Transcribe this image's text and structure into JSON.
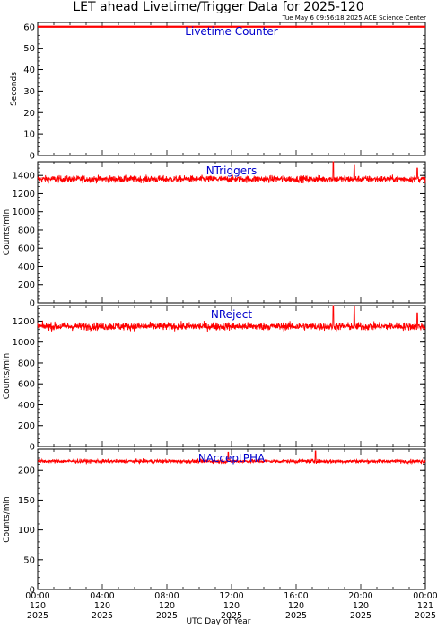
{
  "title": "LET ahead Livetime/Trigger Data for 2025-120",
  "subtitle": "Tue May  6 09:56:18 2025 ACE Science Center",
  "xlabel": "UTC Day of Year",
  "x_ticks": [
    {
      "time": "00:00",
      "doy": "120",
      "year": "2025"
    },
    {
      "time": "04:00",
      "doy": "120",
      "year": "2025"
    },
    {
      "time": "08:00",
      "doy": "120",
      "year": "2025"
    },
    {
      "time": "12:00",
      "doy": "120",
      "year": "2025"
    },
    {
      "time": "16:00",
      "doy": "120",
      "year": "2025"
    },
    {
      "time": "20:00",
      "doy": "120",
      "year": "2025"
    },
    {
      "time": "00:00",
      "doy": "121",
      "year": "2025"
    }
  ],
  "colors": {
    "series": "#ff0000",
    "label": "#0000cc",
    "axis": "#000000"
  },
  "chart_data": [
    {
      "type": "line",
      "label": "Livetime Counter",
      "ylabel": "Seconds",
      "ylim": [
        0,
        62
      ],
      "yticks": [
        0,
        10,
        20,
        30,
        40,
        50,
        60
      ],
      "xlim": [
        0,
        24
      ],
      "series": [
        {
          "values_mean": 60,
          "noise": 0,
          "spikes": []
        }
      ]
    },
    {
      "type": "line",
      "label": "NTriggers",
      "ylabel": "Counts/min",
      "ylim": [
        0,
        1550
      ],
      "yticks": [
        0,
        200,
        400,
        600,
        800,
        1000,
        1200,
        1400
      ],
      "xlim": [
        0,
        24
      ],
      "series": [
        {
          "values_mean": 1360,
          "noise": 60,
          "spikes": [
            [
              18.3,
              1550
            ],
            [
              19.6,
              1510
            ],
            [
              23.5,
              1480
            ]
          ]
        }
      ]
    },
    {
      "type": "line",
      "label": "NReject",
      "ylabel": "Counts/min",
      "ylim": [
        0,
        1350
      ],
      "yticks": [
        0,
        200,
        400,
        600,
        800,
        1000,
        1200
      ],
      "xlim": [
        0,
        24
      ],
      "series": [
        {
          "values_mean": 1150,
          "noise": 60,
          "spikes": [
            [
              18.3,
              1350
            ],
            [
              19.6,
              1340
            ],
            [
              23.5,
              1280
            ]
          ]
        }
      ]
    },
    {
      "type": "line",
      "label": "NAcceptPHA",
      "ylabel": "Counts/min",
      "ylim": [
        0,
        235
      ],
      "yticks": [
        0,
        50,
        100,
        150,
        200
      ],
      "xlim": [
        0,
        24
      ],
      "series": [
        {
          "values_mean": 215,
          "noise": 5,
          "spikes": [
            [
              11.8,
              230
            ],
            [
              17.2,
              232
            ]
          ]
        }
      ]
    }
  ]
}
